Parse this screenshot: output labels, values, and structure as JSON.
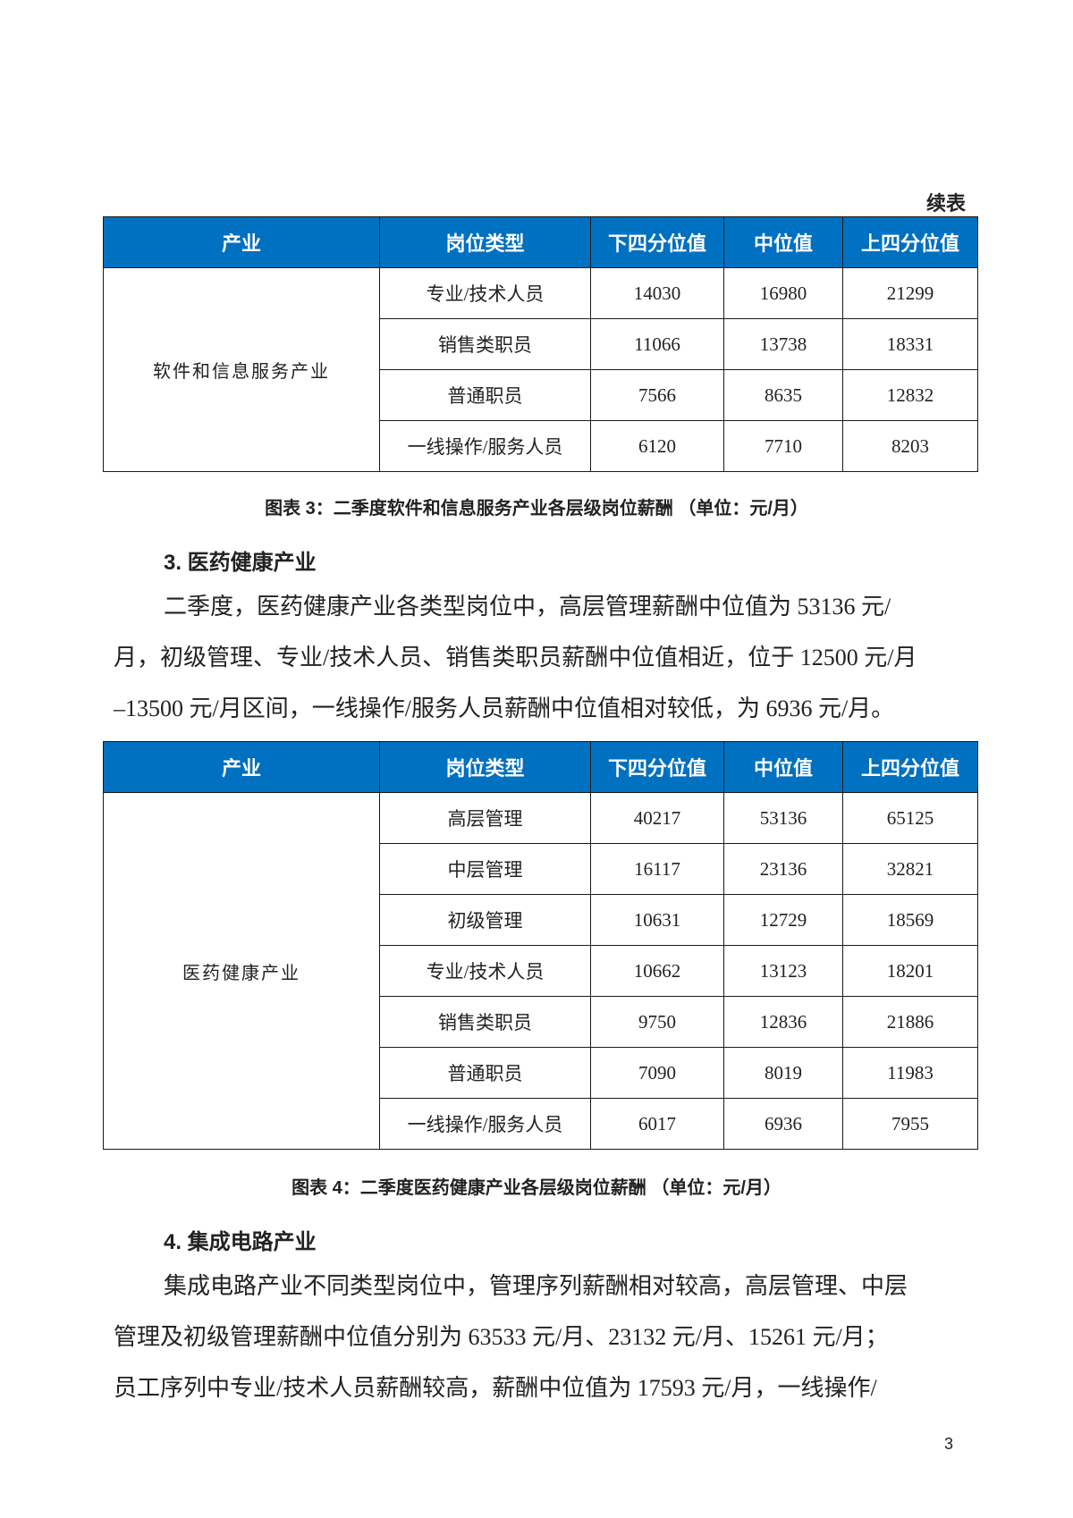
{
  "continued_label": "续表",
  "columns": [
    "产业",
    "岗位类型",
    "下四分位值",
    "中位值",
    "上四分位值"
  ],
  "table3": {
    "industry": "软件和信息服务产业",
    "rows": [
      [
        "专业/技术人员",
        "14030",
        "16980",
        "21299"
      ],
      [
        "销售类职员",
        "11066",
        "13738",
        "18331"
      ],
      [
        "普通职员",
        "7566",
        "8635",
        "12832"
      ],
      [
        "一线操作/服务人员",
        "6120",
        "7710",
        "8203"
      ]
    ],
    "caption": "图表 3：二季度软件和信息服务产业各层级岗位薪酬 （单位：元/月）"
  },
  "section3": {
    "heading": "3. 医药健康产业",
    "lines": [
      "二季度，医药健康产业各类型岗位中，高层管理薪酬中位值为 53136 元/",
      "月，初级管理、专业/技术人员、销售类职员薪酬中位值相近，位于 12500 元/月",
      "–13500 元/月区间，一线操作/服务人员薪酬中位值相对较低，为 6936 元/月。"
    ]
  },
  "table4": {
    "industry": "医药健康产业",
    "rows": [
      [
        "高层管理",
        "40217",
        "53136",
        "65125"
      ],
      [
        "中层管理",
        "16117",
        "23136",
        "32821"
      ],
      [
        "初级管理",
        "10631",
        "12729",
        "18569"
      ],
      [
        "专业/技术人员",
        "10662",
        "13123",
        "18201"
      ],
      [
        "销售类职员",
        "9750",
        "12836",
        "21886"
      ],
      [
        "普通职员",
        "7090",
        "8019",
        "11983"
      ],
      [
        "一线操作/服务人员",
        "6017",
        "6936",
        "7955"
      ]
    ],
    "caption": "图表 4：二季度医药健康产业各层级岗位薪酬 （单位：元/月）"
  },
  "section4": {
    "heading": "4. 集成电路产业",
    "lines": [
      "集成电路产业不同类型岗位中，管理序列薪酬相对较高，高层管理、中层",
      "管理及初级管理薪酬中位值分别为 63533 元/月、23132 元/月、15261 元/月；",
      "员工序列中专业/技术人员薪酬较高，薪酬中位值为 17593 元/月，一线操作/"
    ]
  },
  "page_number": "3",
  "colors": {
    "header_bg": "#0070C0",
    "header_text": "#FFFFFF"
  }
}
